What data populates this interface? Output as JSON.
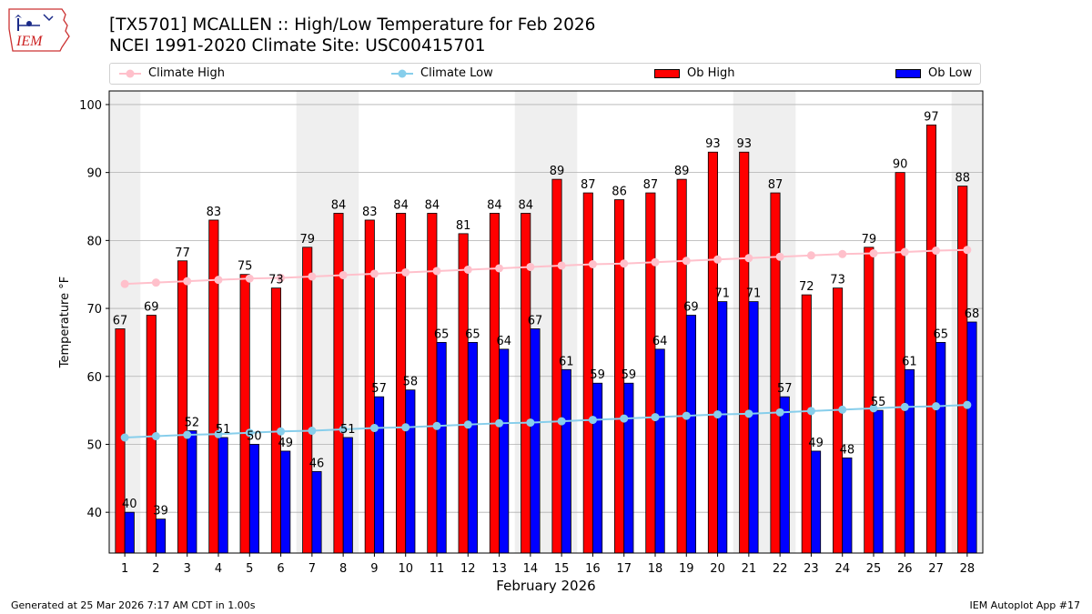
{
  "header": {
    "title_line1": "[TX5701] MCALLEN :: High/Low Temperature for Feb 2026",
    "title_line2": "NCEI 1991-2020 Climate Site: USC00415701",
    "logo_text": "IEM"
  },
  "legend": {
    "climate_high": "Climate High",
    "climate_low": "Climate Low",
    "ob_high": "Ob High",
    "ob_low": "Ob Low"
  },
  "footer": {
    "generated": "Generated at 25 Mar 2026 7:17 AM CDT in 1.00s",
    "app": "IEM Autoplot App #17"
  },
  "colors": {
    "ob_high": "#ff0000",
    "ob_low": "#0000ff",
    "climate_high": "#ffc0cb",
    "climate_low": "#87ceeb",
    "weekend_shade": "#efefef",
    "grid": "#b0b0b0"
  },
  "chart_data": {
    "type": "bar",
    "xlabel": "February 2026",
    "ylabel": "Temperature °F",
    "ylim": [
      34,
      102
    ],
    "yticks": [
      40,
      50,
      60,
      70,
      80,
      90,
      100
    ],
    "grid": "horizontal",
    "legend_position": "top",
    "categories": [
      "1",
      "2",
      "3",
      "4",
      "5",
      "6",
      "7",
      "8",
      "9",
      "10",
      "11",
      "12",
      "13",
      "14",
      "15",
      "16",
      "17",
      "18",
      "19",
      "20",
      "21",
      "22",
      "23",
      "24",
      "25",
      "26",
      "27",
      "28"
    ],
    "weekend_days": [
      1,
      7,
      8,
      14,
      15,
      21,
      22,
      28
    ],
    "series": [
      {
        "name": "Ob High",
        "kind": "bar",
        "values": [
          67,
          69,
          77,
          83,
          75,
          73,
          79,
          84,
          83,
          84,
          84,
          81,
          84,
          84,
          89,
          87,
          86,
          87,
          89,
          93,
          93,
          87,
          72,
          73,
          79,
          90,
          97,
          88
        ]
      },
      {
        "name": "Ob Low",
        "kind": "bar",
        "values": [
          40,
          39,
          52,
          51,
          50,
          49,
          46,
          51,
          57,
          58,
          65,
          65,
          64,
          67,
          61,
          59,
          59,
          64,
          69,
          71,
          71,
          57,
          49,
          48,
          55,
          61,
          65,
          68
        ]
      },
      {
        "name": "Climate High",
        "kind": "line",
        "values": [
          73.6,
          73.8,
          74.0,
          74.2,
          74.4,
          74.5,
          74.7,
          74.9,
          75.1,
          75.3,
          75.5,
          75.7,
          75.9,
          76.1,
          76.3,
          76.5,
          76.6,
          76.8,
          77.0,
          77.2,
          77.4,
          77.6,
          77.8,
          78.0,
          78.1,
          78.3,
          78.5,
          78.6
        ]
      },
      {
        "name": "Climate Low",
        "kind": "line",
        "values": [
          51.0,
          51.2,
          51.4,
          51.5,
          51.7,
          51.9,
          52.0,
          52.2,
          52.4,
          52.5,
          52.7,
          52.9,
          53.1,
          53.2,
          53.4,
          53.6,
          53.8,
          54.0,
          54.2,
          54.4,
          54.5,
          54.7,
          54.9,
          55.1,
          55.3,
          55.5,
          55.6,
          55.8
        ]
      }
    ]
  }
}
